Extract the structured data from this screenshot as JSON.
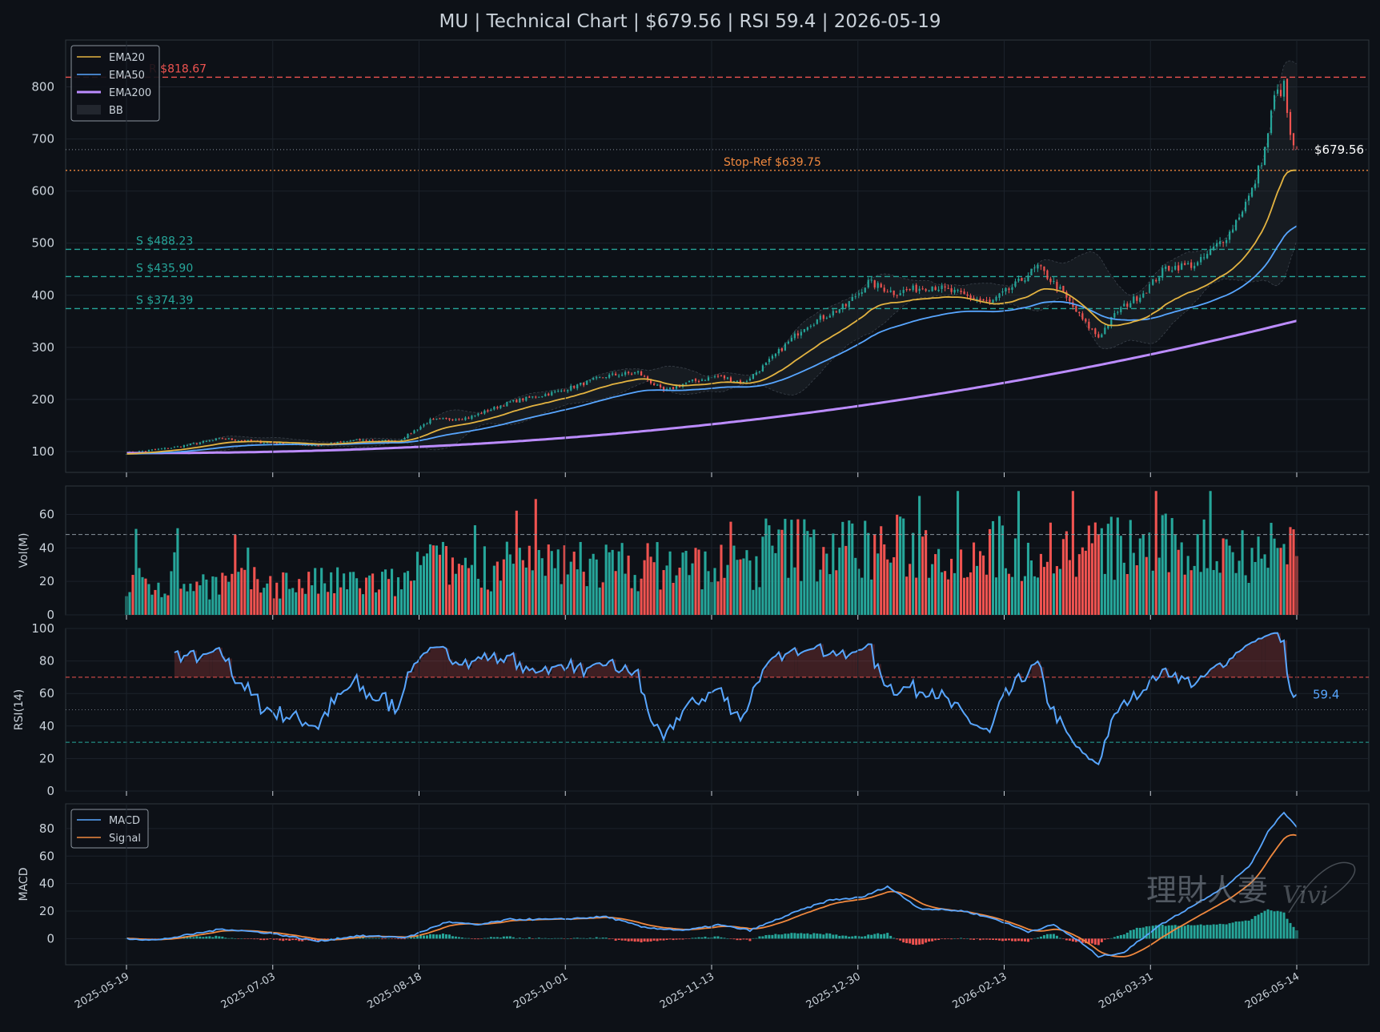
{
  "title": "MU | Technical Chart | $679.56 | RSI 59.4 | 2026-05-19",
  "watermark": {
    "text": "理財人妻",
    "signature": "Vivi"
  },
  "colors": {
    "background": "#0d1117",
    "panel": "#0d1117",
    "grid": "#1c222b",
    "frame": "#30363d",
    "up": "#26a69a",
    "down": "#ef5350",
    "ema20": "#e3b341",
    "ema50": "#58a6ff",
    "ema200": "#bc8cff",
    "bb_fill": "#30363d",
    "rsi": "#58a6ff",
    "macd": "#58a6ff",
    "signal": "#f0883e",
    "stop": "#f0883e",
    "resistance": "#ef5350",
    "support": "#26a69a"
  },
  "x_ticks": [
    "2025-05-19",
    "2025-07-03",
    "2025-08-18",
    "2025-10-01",
    "2025-11-13",
    "2025-12-30",
    "2026-02-13",
    "2026-03-31",
    "2026-05-14"
  ],
  "chart_data": [
    {
      "type": "candlestick",
      "panel": "price",
      "ylim": [
        60,
        890
      ],
      "yticks": [
        "100",
        "200",
        "300",
        "400",
        "500",
        "600",
        "700",
        "800"
      ],
      "anchors": [
        {
          "t": 0,
          "v": 97
        },
        {
          "t": 15,
          "v": 108
        },
        {
          "t": 30,
          "v": 125
        },
        {
          "t": 42,
          "v": 118
        },
        {
          "t": 60,
          "v": 112
        },
        {
          "t": 72,
          "v": 122
        },
        {
          "t": 85,
          "v": 120
        },
        {
          "t": 95,
          "v": 160
        },
        {
          "t": 107,
          "v": 165
        },
        {
          "t": 120,
          "v": 195
        },
        {
          "t": 135,
          "v": 215
        },
        {
          "t": 150,
          "v": 245
        },
        {
          "t": 160,
          "v": 252
        },
        {
          "t": 168,
          "v": 215
        },
        {
          "t": 175,
          "v": 232
        },
        {
          "t": 185,
          "v": 245
        },
        {
          "t": 193,
          "v": 232
        },
        {
          "t": 200,
          "v": 268
        },
        {
          "t": 212,
          "v": 340
        },
        {
          "t": 225,
          "v": 380
        },
        {
          "t": 232,
          "v": 425
        },
        {
          "t": 240,
          "v": 405
        },
        {
          "t": 252,
          "v": 418
        },
        {
          "t": 262,
          "v": 400
        },
        {
          "t": 270,
          "v": 385
        },
        {
          "t": 278,
          "v": 420
        },
        {
          "t": 285,
          "v": 455
        },
        {
          "t": 292,
          "v": 410
        },
        {
          "t": 300,
          "v": 345
        },
        {
          "t": 304,
          "v": 320
        },
        {
          "t": 310,
          "v": 370
        },
        {
          "t": 318,
          "v": 405
        },
        {
          "t": 325,
          "v": 452
        },
        {
          "t": 335,
          "v": 460
        },
        {
          "t": 345,
          "v": 520
        },
        {
          "t": 352,
          "v": 600
        },
        {
          "t": 356,
          "v": 680
        },
        {
          "t": 359,
          "v": 780
        },
        {
          "t": 362,
          "v": 800
        },
        {
          "t": 364,
          "v": 700
        },
        {
          "t": 366,
          "v": 679.56
        }
      ],
      "ema20_last": 640,
      "ema50_last": 533,
      "ema200_last": 351,
      "current_price": 679.56,
      "levels": [
        {
          "name": "R $818.67",
          "value": 818.67,
          "kind": "resistance",
          "label": "R $818.67"
        },
        {
          "name": "Stop-Ref $639.75",
          "value": 639.75,
          "kind": "stop",
          "label": "Stop-Ref $639.75"
        },
        {
          "name": "S $488.23",
          "value": 488.23,
          "kind": "support",
          "label": "S $488.23"
        },
        {
          "name": "S $435.90",
          "value": 435.9,
          "kind": "support",
          "label": "S $435.90"
        },
        {
          "name": "S $374.39",
          "value": 374.39,
          "kind": "support",
          "label": "S $374.39"
        }
      ],
      "price_label": "$679.56",
      "legend": [
        "EMA20",
        "EMA50",
        "EMA200",
        "BB"
      ]
    },
    {
      "type": "bar",
      "panel": "volume",
      "ylabel": "Vol(M)",
      "ylim": [
        0,
        77
      ],
      "yticks": [
        "0",
        "20",
        "40",
        "60"
      ],
      "avg": 48
    },
    {
      "type": "line",
      "panel": "rsi",
      "ylabel": "RSI(14)",
      "ylim": [
        0,
        100
      ],
      "yticks": [
        "0",
        "20",
        "40",
        "60",
        "80",
        "100"
      ],
      "overbought": 70,
      "oversold": 30,
      "mid": 50,
      "last": 59.4,
      "last_label": "59.4"
    },
    {
      "type": "line",
      "panel": "macd",
      "ylabel": "MACD",
      "ylim": [
        -19,
        98
      ],
      "yticks": [
        "0",
        "20",
        "40",
        "60",
        "80"
      ],
      "legend": [
        "MACD",
        "Signal"
      ],
      "anchors": [
        {
          "t": 0,
          "v": 0
        },
        {
          "t": 10,
          "v": -1
        },
        {
          "t": 30,
          "v": 7
        },
        {
          "t": 45,
          "v": 4
        },
        {
          "t": 60,
          "v": -2
        },
        {
          "t": 72,
          "v": 2
        },
        {
          "t": 88,
          "v": 1
        },
        {
          "t": 100,
          "v": 12
        },
        {
          "t": 110,
          "v": 10
        },
        {
          "t": 120,
          "v": 14
        },
        {
          "t": 135,
          "v": 14
        },
        {
          "t": 150,
          "v": 16
        },
        {
          "t": 162,
          "v": 8
        },
        {
          "t": 175,
          "v": 6
        },
        {
          "t": 185,
          "v": 10
        },
        {
          "t": 195,
          "v": 6
        },
        {
          "t": 210,
          "v": 20
        },
        {
          "t": 220,
          "v": 28
        },
        {
          "t": 230,
          "v": 30
        },
        {
          "t": 238,
          "v": 38
        },
        {
          "t": 248,
          "v": 22
        },
        {
          "t": 262,
          "v": 20
        },
        {
          "t": 272,
          "v": 14
        },
        {
          "t": 282,
          "v": 5
        },
        {
          "t": 290,
          "v": 10
        },
        {
          "t": 298,
          "v": -2
        },
        {
          "t": 304,
          "v": -13
        },
        {
          "t": 312,
          "v": -10
        },
        {
          "t": 322,
          "v": 8
        },
        {
          "t": 335,
          "v": 26
        },
        {
          "t": 345,
          "v": 40
        },
        {
          "t": 352,
          "v": 55
        },
        {
          "t": 357,
          "v": 78
        },
        {
          "t": 362,
          "v": 92
        },
        {
          "t": 366,
          "v": 81
        }
      ],
      "macd_last": 81,
      "signal_last": 75
    }
  ]
}
